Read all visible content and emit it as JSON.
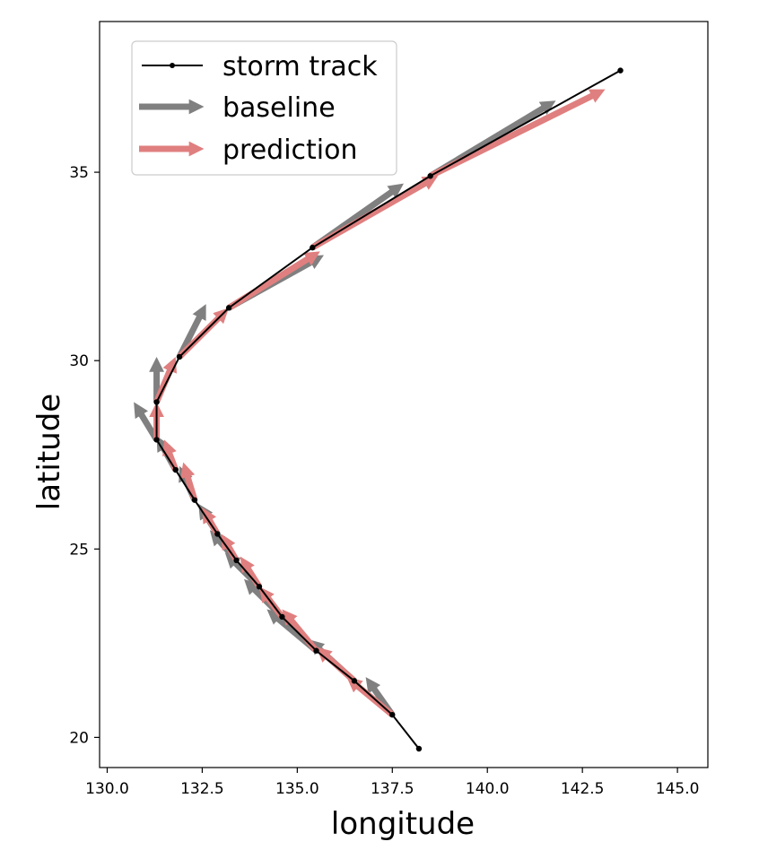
{
  "chart_data": {
    "type": "line",
    "xlabel": "longitude",
    "ylabel": "latitude",
    "xlim": [
      129.8,
      145.8
    ],
    "ylim": [
      19.2,
      39.0
    ],
    "xticks": [
      "130.0",
      "132.5",
      "135.0",
      "137.5",
      "140.0",
      "142.5",
      "145.0"
    ],
    "yticks": [
      "20",
      "25",
      "30",
      "35"
    ],
    "grid": false,
    "legend_position": "top-left",
    "legend": [
      "storm track",
      "baseline",
      "prediction"
    ],
    "colors": {
      "storm_track": "#000000",
      "baseline": "#808080",
      "prediction": "#e07f7f"
    },
    "storm_track": {
      "lon": [
        138.2,
        137.5,
        136.5,
        135.5,
        134.6,
        134.0,
        133.4,
        132.9,
        132.3,
        131.8,
        131.3,
        131.3,
        131.9,
        133.2,
        135.4,
        138.5,
        143.5
      ],
      "lat": [
        19.7,
        20.6,
        21.5,
        22.3,
        23.2,
        24.0,
        24.7,
        25.4,
        26.3,
        27.1,
        27.9,
        28.9,
        30.1,
        31.4,
        33.0,
        34.9,
        37.7
      ]
    },
    "baseline": [
      {
        "start": [
          137.5,
          20.6
        ],
        "end": [
          136.8,
          21.6
        ]
      },
      {
        "start": [
          136.5,
          21.5
        ],
        "end": [
          135.3,
          22.6
        ]
      },
      {
        "start": [
          135.5,
          22.3
        ],
        "end": [
          134.2,
          23.4
        ]
      },
      {
        "start": [
          134.6,
          23.2
        ],
        "end": [
          133.6,
          24.2
        ]
      },
      {
        "start": [
          134.0,
          24.0
        ],
        "end": [
          133.1,
          24.9
        ]
      },
      {
        "start": [
          133.4,
          24.7
        ],
        "end": [
          132.7,
          25.5
        ]
      },
      {
        "start": [
          132.9,
          25.4
        ],
        "end": [
          132.4,
          26.2
        ]
      },
      {
        "start": [
          132.3,
          26.3
        ],
        "end": [
          131.9,
          27.2
        ]
      },
      {
        "start": [
          131.8,
          27.1
        ],
        "end": [
          131.3,
          28.0
        ]
      },
      {
        "start": [
          131.3,
          27.9
        ],
        "end": [
          130.7,
          28.9
        ]
      },
      {
        "start": [
          131.3,
          28.9
        ],
        "end": [
          131.3,
          30.1
        ]
      },
      {
        "start": [
          131.9,
          30.1
        ],
        "end": [
          132.6,
          31.5
        ]
      },
      {
        "start": [
          133.2,
          31.4
        ],
        "end": [
          135.7,
          32.8
        ]
      },
      {
        "start": [
          135.4,
          33.0
        ],
        "end": [
          137.8,
          34.7
        ]
      },
      {
        "start": [
          138.5,
          34.9
        ],
        "end": [
          141.8,
          36.9
        ]
      }
    ],
    "prediction": [
      {
        "start": [
          137.5,
          20.6
        ],
        "end": [
          136.3,
          21.6
        ]
      },
      {
        "start": [
          136.5,
          21.5
        ],
        "end": [
          135.5,
          22.4
        ]
      },
      {
        "start": [
          135.5,
          22.3
        ],
        "end": [
          134.6,
          23.4
        ]
      },
      {
        "start": [
          134.6,
          23.2
        ],
        "end": [
          134.0,
          24.0
        ]
      },
      {
        "start": [
          134.0,
          24.0
        ],
        "end": [
          133.5,
          24.8
        ]
      },
      {
        "start": [
          133.4,
          24.7
        ],
        "end": [
          133.0,
          25.4
        ]
      },
      {
        "start": [
          132.9,
          25.4
        ],
        "end": [
          132.5,
          26.1
        ]
      },
      {
        "start": [
          132.3,
          26.3
        ],
        "end": [
          132.0,
          27.3
        ]
      },
      {
        "start": [
          131.8,
          27.1
        ],
        "end": [
          131.5,
          27.9
        ]
      },
      {
        "start": [
          131.3,
          27.9
        ],
        "end": [
          131.3,
          28.9
        ]
      },
      {
        "start": [
          131.3,
          28.9
        ],
        "end": [
          131.8,
          30.1
        ]
      },
      {
        "start": [
          131.9,
          30.1
        ],
        "end": [
          133.2,
          31.4
        ]
      },
      {
        "start": [
          133.2,
          31.4
        ],
        "end": [
          135.6,
          32.9
        ]
      },
      {
        "start": [
          135.4,
          33.0
        ],
        "end": [
          138.7,
          34.9
        ]
      },
      {
        "start": [
          138.5,
          34.9
        ],
        "end": [
          143.1,
          37.2
        ]
      }
    ]
  }
}
